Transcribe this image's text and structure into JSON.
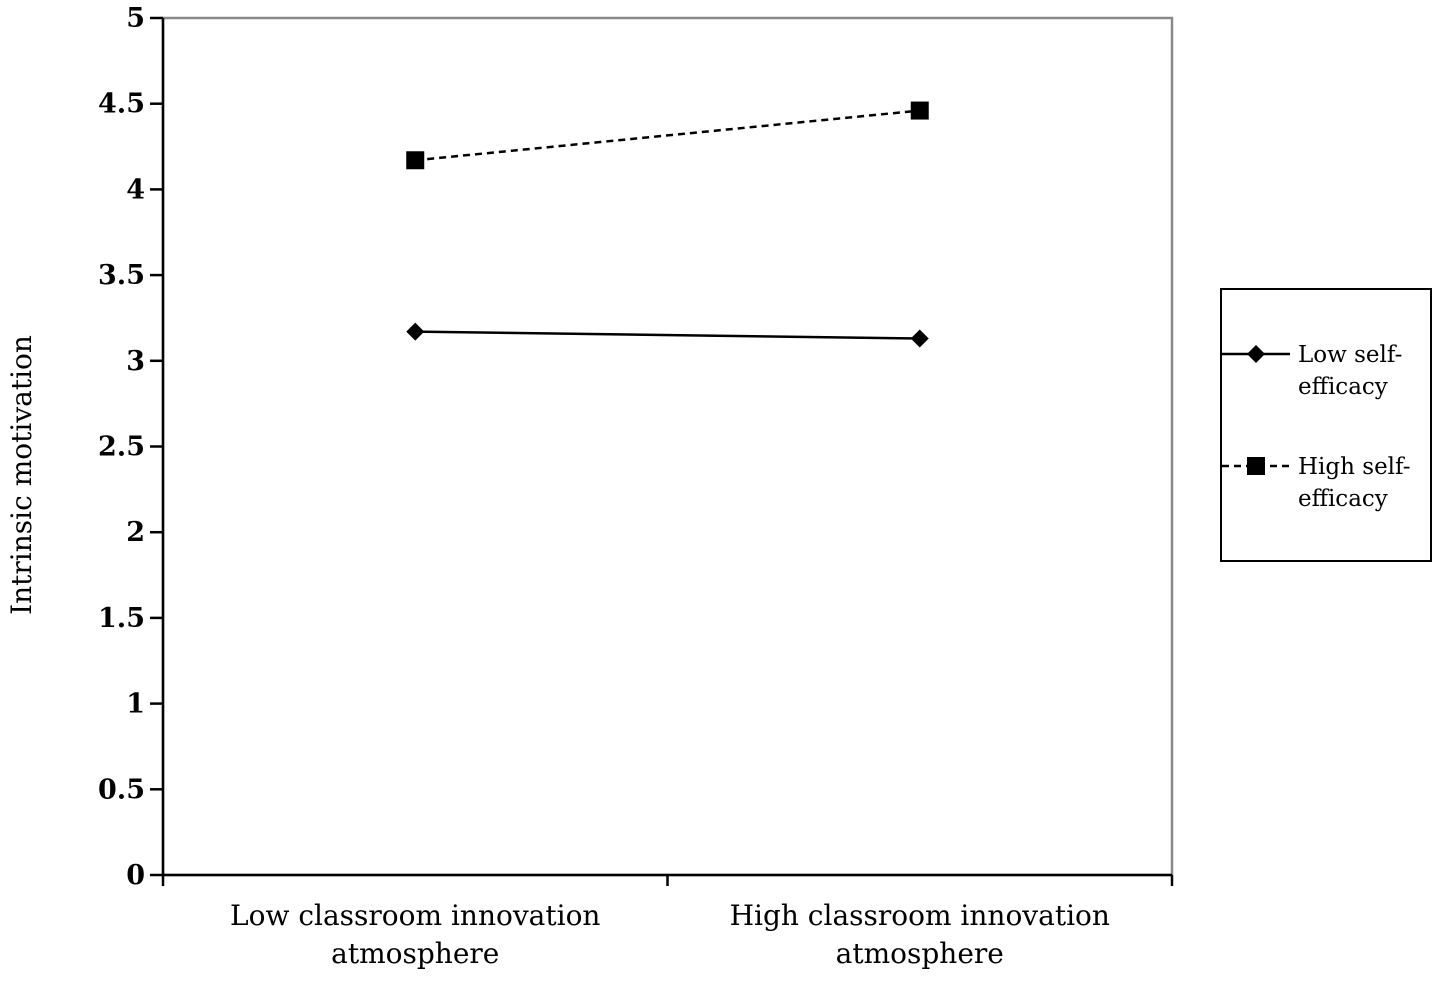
{
  "chart_data": {
    "type": "line",
    "title": "",
    "xlabel": "",
    "ylabel": "Intrinsic motivation",
    "ylim": [
      0,
      5
    ],
    "yticks": [
      "0",
      "0.5",
      "1",
      "1.5",
      "2",
      "2.5",
      "3",
      "3.5",
      "4",
      "4.5",
      "5"
    ],
    "categories": [
      [
        "Low classroom innovation",
        "atmosphere"
      ],
      [
        "High classroom innovation",
        "atmosphere"
      ]
    ],
    "series": [
      {
        "name": [
          "Low self-",
          "efficacy"
        ],
        "values": [
          3.17,
          3.13
        ],
        "line_style": "solid",
        "marker": "diamond",
        "color": "#000000"
      },
      {
        "name": [
          "High self-",
          "efficacy"
        ],
        "values": [
          4.17,
          4.46
        ],
        "line_style": "dashed",
        "marker": "square",
        "color": "#000000"
      }
    ],
    "grid": false,
    "legend_position": "right"
  }
}
